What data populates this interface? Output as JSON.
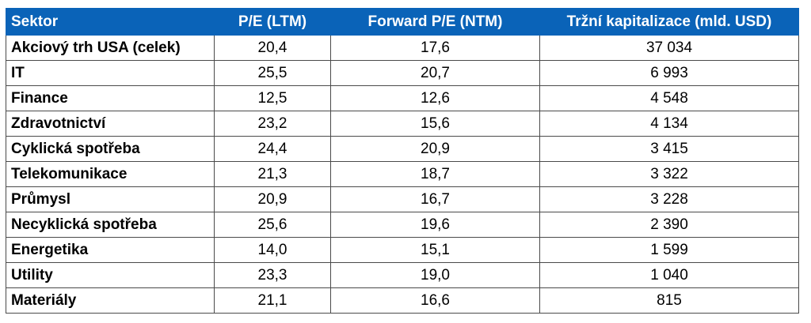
{
  "chart_data": {
    "type": "table",
    "columns": [
      "Sektor",
      "P/E (LTM)",
      "Forward P/E (NTM)",
      "Tržní kapitalizace (mld. USD)"
    ],
    "rows": [
      {
        "sector": "Akciový trh USA (celek)",
        "pe_ltm": "20,4",
        "pe_ntm": "17,6",
        "cap": "37 034"
      },
      {
        "sector": "IT",
        "pe_ltm": "25,5",
        "pe_ntm": "20,7",
        "cap": "6 993"
      },
      {
        "sector": "Finance",
        "pe_ltm": "12,5",
        "pe_ntm": "12,6",
        "cap": "4 548"
      },
      {
        "sector": "Zdravotnictví",
        "pe_ltm": "23,2",
        "pe_ntm": "15,6",
        "cap": "4 134"
      },
      {
        "sector": "Cyklická spotřeba",
        "pe_ltm": "24,4",
        "pe_ntm": "20,9",
        "cap": "3 415"
      },
      {
        "sector": "Telekomunikace",
        "pe_ltm": "21,3",
        "pe_ntm": "18,7",
        "cap": "3 322"
      },
      {
        "sector": "Průmysl",
        "pe_ltm": "20,9",
        "pe_ntm": "16,7",
        "cap": "3 228"
      },
      {
        "sector": "Necyklická spotřeba",
        "pe_ltm": "25,6",
        "pe_ntm": "19,6",
        "cap": "2 390"
      },
      {
        "sector": "Energetika",
        "pe_ltm": "14,0",
        "pe_ntm": "15,1",
        "cap": "1 599"
      },
      {
        "sector": "Utility",
        "pe_ltm": "23,3",
        "pe_ntm": "19,0",
        "cap": "1 040"
      },
      {
        "sector": "Materiály",
        "pe_ltm": "21,1",
        "pe_ntm": "16,6",
        "cap": "815"
      }
    ],
    "header_color": "#0a63b8"
  }
}
